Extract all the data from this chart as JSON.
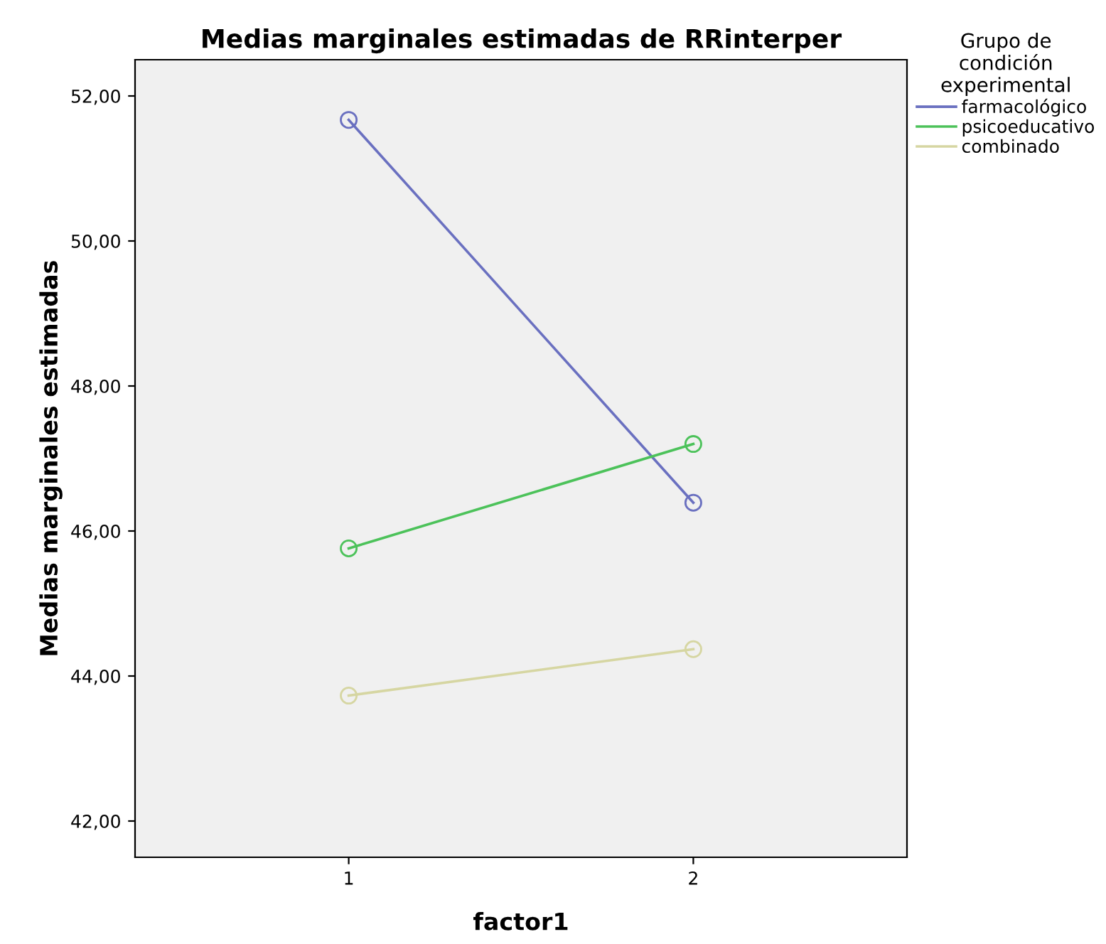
{
  "chart_data": {
    "type": "line",
    "title": "Medias marginales estimadas de RRinterper",
    "xlabel": "factor1",
    "ylabel": "Medias marginales estimadas",
    "legend_title": "Grupo de\ncondición\nexperimental",
    "legend": "top right",
    "marker": "circle",
    "grid": false,
    "categories": [
      "1",
      "2"
    ],
    "series": [
      {
        "name": "farmacológico",
        "color": "#6a70c0",
        "values": [
          51.67,
          46.39
        ]
      },
      {
        "name": "psicoeducativo",
        "color": "#4cc25a",
        "values": [
          45.76,
          47.2
        ]
      },
      {
        "name": "combinado",
        "color": "#d6d6a2",
        "values": [
          43.73,
          44.37
        ]
      }
    ],
    "ylim": [
      41.5,
      52.5
    ],
    "yticks": [
      {
        "value": 42,
        "label": "42,00"
      },
      {
        "value": 44,
        "label": "44,00"
      },
      {
        "value": 46,
        "label": "46,00"
      },
      {
        "value": 48,
        "label": "48,00"
      },
      {
        "value": 50,
        "label": "50,00"
      },
      {
        "value": 52,
        "label": "52,00"
      }
    ]
  }
}
